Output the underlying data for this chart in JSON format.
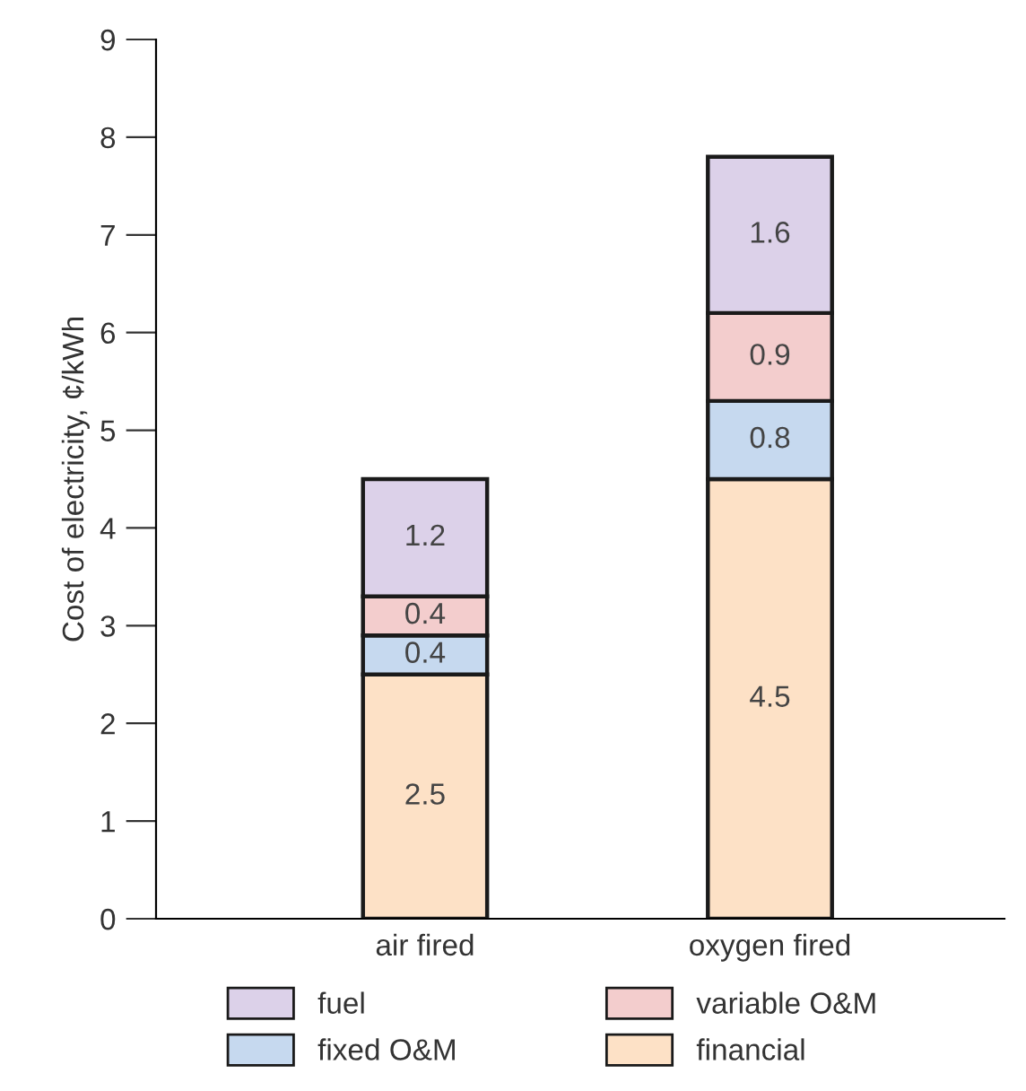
{
  "chart_data": {
    "type": "bar",
    "stacked": true,
    "ylabel": "Cost of electricity, ¢/kWh",
    "categories": [
      "air fired",
      "oxygen fired"
    ],
    "series": [
      {
        "name": "financial",
        "color": "#fde1c6",
        "values": [
          2.5,
          4.5
        ]
      },
      {
        "name": "fixed O&M",
        "color": "#c6d9ef",
        "values": [
          0.4,
          0.8
        ]
      },
      {
        "name": "variable O&M",
        "color": "#f3cdcd",
        "values": [
          0.4,
          0.9
        ]
      },
      {
        "name": "fuel",
        "color": "#dcd1e9",
        "values": [
          1.2,
          1.6
        ]
      }
    ],
    "ylim": [
      0,
      9
    ],
    "yticks": [
      0,
      1,
      2,
      3,
      4,
      5,
      6,
      7,
      8,
      9
    ],
    "data_labels": true,
    "legend": "bottom",
    "grid": false
  }
}
